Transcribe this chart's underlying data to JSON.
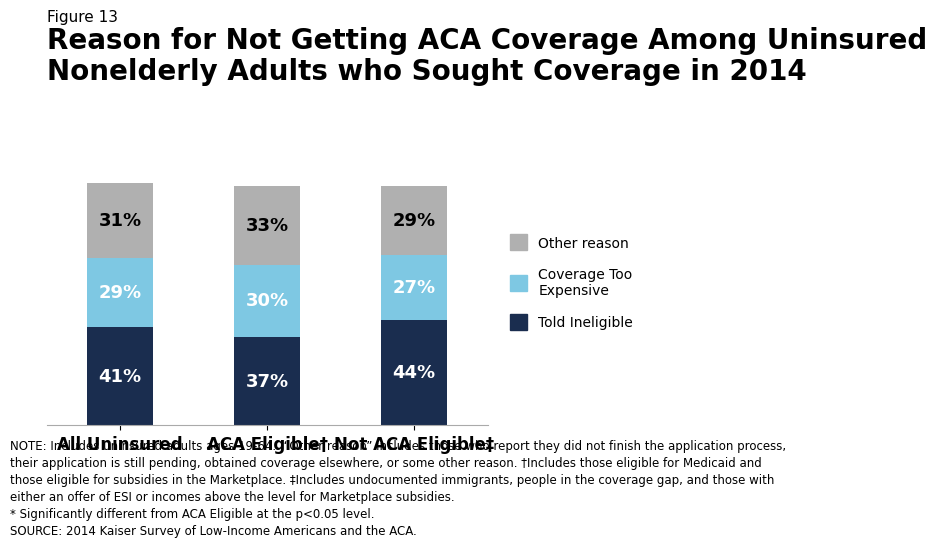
{
  "categories": [
    "All Uninsured",
    "ACA Eligible†",
    "Not ACA Eligible‡"
  ],
  "told_ineligible": [
    41,
    37,
    44
  ],
  "coverage_too_expensive": [
    29,
    30,
    27
  ],
  "other_reason": [
    31,
    33,
    29
  ],
  "colors": {
    "told_ineligible": "#1a2d4f",
    "coverage_too_expensive": "#7ec8e3",
    "other_reason": "#b0b0b0"
  },
  "figure_label": "Figure 13",
  "title": "Reason for Not Getting ACA Coverage Among Uninsured\nNonelderly Adults who Sought Coverage in 2014",
  "note_line1": "NOTE: Includes uninsured adults ages 19-64.  “Other reason” includes those who report they did not finish the application process,",
  "note_line2": "their application is still pending, obtained coverage elsewhere, or some other reason. †Includes those eligible for Medicaid and",
  "note_line3": "those eligible for subsidies in the Marketplace. ‡Includes undocumented immigrants, people in the coverage gap, and those with",
  "note_line4": "either an offer of ESI or incomes above the level for Marketplace subsidies.",
  "note_line5": "* Significantly different from ACA Eligible at the p<0.05 level.",
  "note_line6": "SOURCE: 2014 Kaiser Survey of Low-Income Americans and the ACA.",
  "bar_width": 0.45,
  "ylim": [
    0,
    115
  ],
  "label_fontsize": 13,
  "title_fontsize": 20,
  "figure_label_fontsize": 11,
  "note_fontsize": 8.5,
  "tick_fontsize": 12
}
